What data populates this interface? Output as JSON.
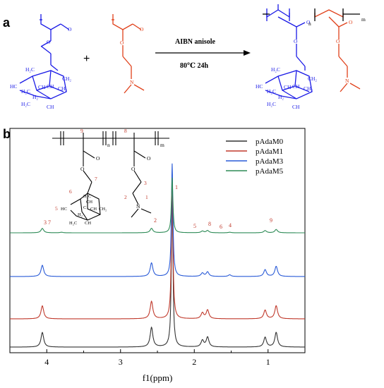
{
  "panel_a": {
    "label": "a",
    "plus": "+",
    "conditions_top": "AIBN  anisole",
    "conditions_bottom": "80℃ 24h",
    "colors": {
      "adamantyl": "#1a1ae6",
      "dma": "#e0401a",
      "bond": "#000000"
    },
    "monomer1_labels": [
      "H₂C",
      "H₂C",
      "HC",
      "CH",
      "CH₂",
      "CH",
      "CH₂",
      "H₂",
      "H₂C",
      "CH"
    ],
    "product_labels": [
      "H₂C",
      "H₂C",
      "HC",
      "CH",
      "CH₂",
      "CH",
      "CH₂",
      "H₂",
      "H₂C",
      "CH"
    ],
    "subscript_n": "n",
    "subscript_m": "m",
    "atom_O": "O",
    "atom_N": "N"
  },
  "panel_b": {
    "label": "b",
    "inset": {
      "labels": [
        "9",
        "8",
        "n",
        "m",
        "O",
        "O",
        "O",
        "O",
        "7",
        "3",
        "6",
        "2",
        "1",
        "N",
        "5",
        "HC",
        "C",
        "CH",
        "CH₂",
        "H₂C",
        "CH",
        "CH",
        "H₂C",
        "H₂"
      ]
    },
    "peak_labels": [
      "1",
      "2",
      "3 7",
      "5",
      "8",
      "6",
      "4",
      "9"
    ]
  },
  "chart_data": {
    "type": "line",
    "title": "",
    "xlabel": "f1(ppm)",
    "ylabel": "",
    "xlim": [
      4.5,
      0.5
    ],
    "x_reversed": true,
    "x_ticks": [
      4,
      3,
      2,
      1
    ],
    "legend_position": "top-right",
    "grid": false,
    "series": [
      {
        "name": "pAdaM0",
        "color": "#333333",
        "peaks": [
          [
            4.06,
            0.09
          ],
          [
            2.58,
            0.12
          ],
          [
            2.3,
            1.0
          ],
          [
            1.89,
            0.04
          ],
          [
            1.82,
            0.06
          ],
          [
            1.04,
            0.06
          ],
          [
            0.89,
            0.09
          ]
        ]
      },
      {
        "name": "pAdaM1",
        "color": "#c0392b",
        "peaks": [
          [
            4.06,
            0.09
          ],
          [
            2.58,
            0.12
          ],
          [
            2.3,
            1.0
          ],
          [
            1.89,
            0.04
          ],
          [
            1.82,
            0.06
          ],
          [
            1.04,
            0.06
          ],
          [
            0.89,
            0.09
          ]
        ]
      },
      {
        "name": "pAdaM3",
        "color": "#2a5bd7",
        "peaks": [
          [
            4.06,
            0.1
          ],
          [
            2.58,
            0.12
          ],
          [
            2.3,
            1.0
          ],
          [
            1.89,
            0.03
          ],
          [
            1.82,
            0.04
          ],
          [
            1.52,
            0.015
          ],
          [
            1.04,
            0.06
          ],
          [
            0.89,
            0.09
          ]
        ]
      },
      {
        "name": "pAdaM5",
        "color": "#2e8b57",
        "peaks": [
          [
            4.06,
            0.08
          ],
          [
            3.8,
            0.01
          ],
          [
            2.58,
            0.08
          ],
          [
            2.3,
            1.0
          ],
          [
            1.89,
            0.03
          ],
          [
            1.82,
            0.04
          ],
          [
            1.52,
            0.01
          ],
          [
            1.04,
            0.04
          ],
          [
            0.89,
            0.06
          ]
        ]
      }
    ]
  }
}
